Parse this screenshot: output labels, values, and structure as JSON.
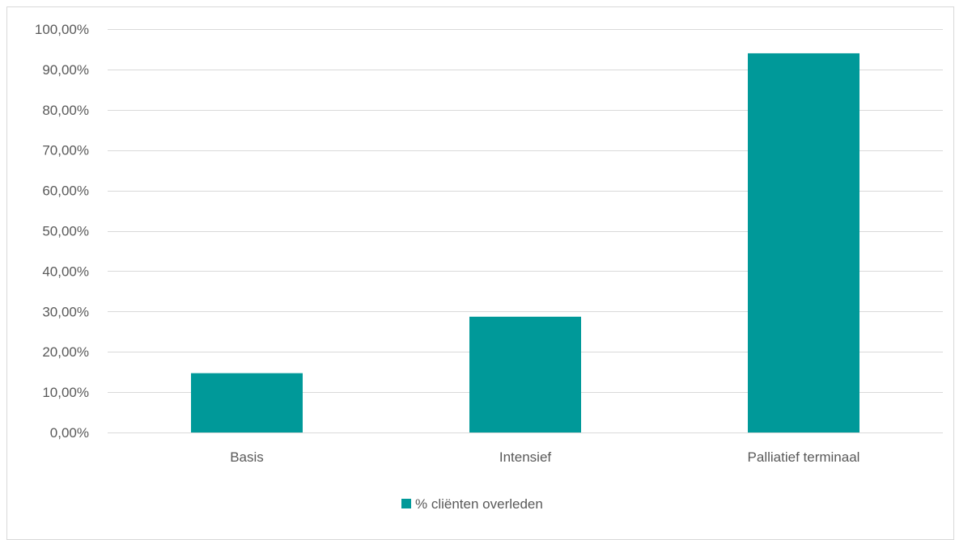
{
  "chart_data": {
    "type": "bar",
    "title": "",
    "xlabel": "",
    "ylabel": "",
    "categories": [
      "Basis",
      "Intensief",
      "Palliatief terminaal"
    ],
    "series": [
      {
        "name": "% cliënten overleden",
        "values": [
          14.7,
          28.7,
          94.0
        ],
        "color": "#009999"
      }
    ],
    "ylim": [
      0,
      100
    ],
    "y_ticks": [
      0,
      10,
      20,
      30,
      40,
      50,
      60,
      70,
      80,
      90,
      100
    ],
    "y_tick_labels": [
      "0,00%",
      "10,00%",
      "20,00%",
      "30,00%",
      "40,00%",
      "50,00%",
      "60,00%",
      "70,00%",
      "80,00%",
      "90,00%",
      "100,00%"
    ],
    "grid": true,
    "legend_position": "bottom"
  }
}
